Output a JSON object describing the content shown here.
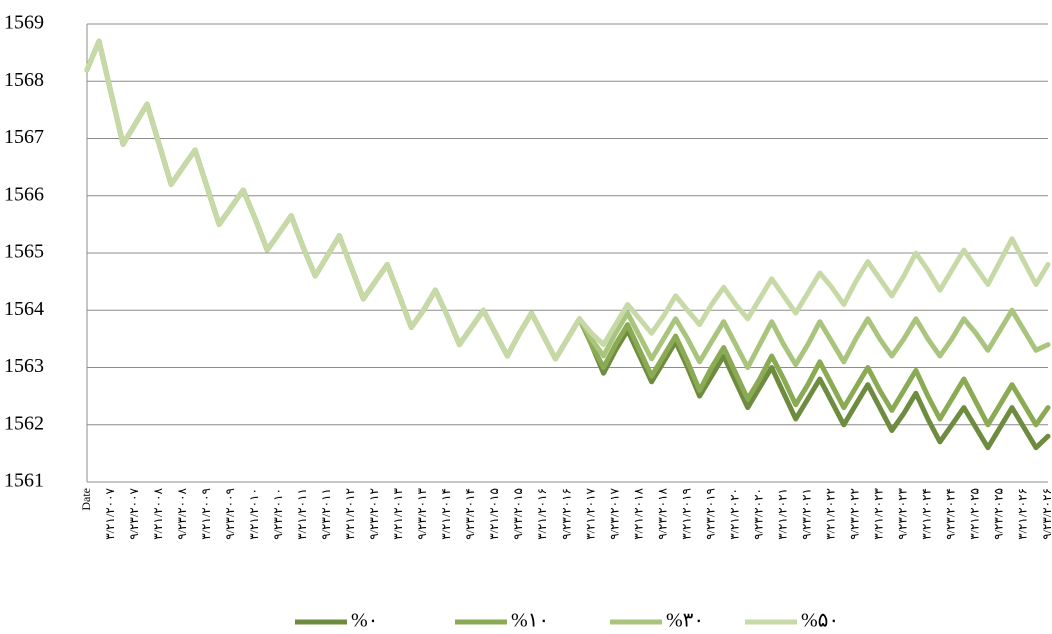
{
  "chart_data": {
    "type": "line",
    "categories": [
      "Date",
      null,
      "۳/۲۱/۲۰۰۷",
      null,
      "۹/۲۳/۲۰۰۷",
      null,
      "۳/۲۱/۲۰۰۸",
      null,
      "۹/۲۳/۲۰۰۸",
      null,
      "۳/۲۱/۲۰۰۹",
      null,
      "۹/۲۳/۲۰۰۹",
      null,
      "۳/۲۱/۲۰۱۰",
      null,
      "۹/۲۳/۲۰۱۰",
      null,
      "۳/۲۱/۲۰۱۱",
      null,
      "۹/۲۳/۲۰۱۱",
      null,
      "۳/۲۱/۲۰۱۲",
      null,
      "۹/۲۳/۲۰۱۲",
      null,
      "۳/۲۱/۲۰۱۳",
      null,
      "۹/۲۳/۲۰۱۳",
      null,
      "۳/۲۱/۲۰۱۴",
      null,
      "۹/۲۳/۲۰۱۴",
      null,
      "۳/۲۱/۲۰۱۵",
      null,
      "۹/۲۳/۲۰۱۵",
      null,
      "۳/۲۱/۲۰۱۶",
      null,
      "۹/۲۳/۲۰۱۶",
      null,
      "۳/۲۱/۲۰۱۷",
      null,
      "۹/۲۳/۲۰۱۷",
      null,
      "۳/۲۱/۲۰۱۸",
      null,
      "۹/۲۳/۲۰۱۸",
      null,
      "۳/۲۱/۲۰۱۹",
      null,
      "۹/۲۳/۲۰۱۹",
      null,
      "۳/۲۱/۲۰۲۰",
      null,
      "۹/۲۳/۲۰۲۰",
      null,
      "۳/۲۱/۲۰۲۱",
      null,
      "۹/۲۳/۲۰۲۱",
      null,
      "۳/۲۱/۲۰۲۲",
      null,
      "۹/۲۳/۲۰۲۲",
      null,
      "۳/۲۱/۲۰۲۳",
      null,
      "۹/۲۳/۲۰۲۳",
      null,
      "۳/۲۱/۲۰۲۴",
      null,
      "۹/۲۳/۲۰۲۴",
      null,
      "۳/۲۱/۲۰۲۵",
      null,
      "۹/۲۳/۲۰۲۵",
      null,
      "۳/۲۱/۲۰۲۶",
      null,
      "۹/۲۳/۲۰۲۶"
    ],
    "series": [
      {
        "name": "%۰",
        "color": "#6e8c3f",
        "values": [
          1568.2,
          1568.7,
          1567.8,
          1566.9,
          1567.25,
          1567.6,
          1566.9,
          1566.2,
          1566.5,
          1566.8,
          1566.15,
          1565.5,
          1565.8,
          1566.1,
          1565.6,
          1565.05,
          1565.35,
          1565.65,
          1565.1,
          1564.6,
          1564.95,
          1565.3,
          1564.75,
          1564.2,
          1564.5,
          1564.8,
          1564.25,
          1563.7,
          1564.0,
          1564.35,
          1563.9,
          1563.4,
          1563.7,
          1564.0,
          1563.6,
          1563.2,
          1563.6,
          1563.95,
          1563.55,
          1563.15,
          1563.5,
          1563.85,
          1563.4,
          1562.9,
          1563.3,
          1563.65,
          1563.2,
          1562.75,
          1563.1,
          1563.45,
          1563.0,
          1562.5,
          1562.85,
          1563.2,
          1562.75,
          1562.3,
          1562.65,
          1563.0,
          1562.55,
          1562.1,
          1562.45,
          1562.8,
          1562.4,
          1562.0,
          1562.35,
          1562.7,
          1562.3,
          1561.9,
          1562.2,
          1562.55,
          1562.1,
          1561.7,
          1562.0,
          1562.3,
          1561.95,
          1561.6,
          1561.95,
          1562.3,
          1561.95,
          1561.6,
          1561.8
        ]
      },
      {
        "name": "%۱۰",
        "color": "#8aab54",
        "values": [
          1568.2,
          1568.7,
          1567.8,
          1566.9,
          1567.25,
          1567.6,
          1566.9,
          1566.2,
          1566.5,
          1566.8,
          1566.15,
          1565.5,
          1565.8,
          1566.1,
          1565.6,
          1565.05,
          1565.35,
          1565.65,
          1565.1,
          1564.6,
          1564.95,
          1565.3,
          1564.75,
          1564.2,
          1564.5,
          1564.8,
          1564.25,
          1563.7,
          1564.0,
          1564.35,
          1563.9,
          1563.4,
          1563.7,
          1564.0,
          1563.6,
          1563.2,
          1563.6,
          1563.95,
          1563.55,
          1563.15,
          1563.5,
          1563.85,
          1563.4,
          1563.0,
          1563.4,
          1563.75,
          1563.3,
          1562.85,
          1563.2,
          1563.55,
          1563.1,
          1562.6,
          1563.0,
          1563.35,
          1562.9,
          1562.45,
          1562.8,
          1563.2,
          1562.8,
          1562.35,
          1562.7,
          1563.1,
          1562.7,
          1562.3,
          1562.65,
          1563.0,
          1562.6,
          1562.25,
          1562.6,
          1562.95,
          1562.5,
          1562.1,
          1562.45,
          1562.8,
          1562.4,
          1562.0,
          1562.35,
          1562.7,
          1562.35,
          1562.0,
          1562.3
        ]
      },
      {
        "name": "%۳۰",
        "color": "#a9c47c",
        "values": [
          1568.2,
          1568.7,
          1567.8,
          1566.9,
          1567.25,
          1567.6,
          1566.9,
          1566.2,
          1566.5,
          1566.8,
          1566.15,
          1565.5,
          1565.8,
          1566.1,
          1565.6,
          1565.05,
          1565.35,
          1565.65,
          1565.1,
          1564.6,
          1564.95,
          1565.3,
          1564.75,
          1564.2,
          1564.5,
          1564.8,
          1564.25,
          1563.7,
          1564.0,
          1564.35,
          1563.9,
          1563.4,
          1563.7,
          1564.0,
          1563.6,
          1563.2,
          1563.6,
          1563.95,
          1563.55,
          1563.15,
          1563.5,
          1563.85,
          1563.5,
          1563.2,
          1563.6,
          1563.95,
          1563.55,
          1563.15,
          1563.5,
          1563.85,
          1563.5,
          1563.1,
          1563.45,
          1563.8,
          1563.4,
          1563.0,
          1563.4,
          1563.8,
          1563.4,
          1563.05,
          1563.4,
          1563.8,
          1563.45,
          1563.1,
          1563.5,
          1563.85,
          1563.5,
          1563.2,
          1563.5,
          1563.85,
          1563.5,
          1563.2,
          1563.5,
          1563.85,
          1563.6,
          1563.3,
          1563.65,
          1564.0,
          1563.65,
          1563.3,
          1563.4
        ]
      },
      {
        "name": "%۵۰",
        "color": "#c6d9a6",
        "values": [
          1568.2,
          1568.7,
          1567.8,
          1566.9,
          1567.25,
          1567.6,
          1566.9,
          1566.2,
          1566.5,
          1566.8,
          1566.15,
          1565.5,
          1565.8,
          1566.1,
          1565.6,
          1565.05,
          1565.35,
          1565.65,
          1565.1,
          1564.6,
          1564.95,
          1565.3,
          1564.75,
          1564.2,
          1564.5,
          1564.8,
          1564.25,
          1563.7,
          1564.0,
          1564.35,
          1563.9,
          1563.4,
          1563.7,
          1564.0,
          1563.6,
          1563.2,
          1563.6,
          1563.95,
          1563.55,
          1563.15,
          1563.5,
          1563.85,
          1563.6,
          1563.4,
          1563.75,
          1564.1,
          1563.85,
          1563.6,
          1563.9,
          1564.25,
          1564.0,
          1563.75,
          1564.1,
          1564.4,
          1564.1,
          1563.85,
          1564.2,
          1564.55,
          1564.25,
          1563.95,
          1564.3,
          1564.65,
          1564.4,
          1564.1,
          1564.5,
          1564.85,
          1564.55,
          1564.25,
          1564.6,
          1565.0,
          1564.7,
          1564.35,
          1564.7,
          1565.05,
          1564.75,
          1564.45,
          1564.85,
          1565.25,
          1564.85,
          1564.45,
          1564.8
        ]
      }
    ],
    "ylim": [
      1561,
      1569
    ],
    "yticks": [
      1561,
      1562,
      1563,
      1564,
      1565,
      1566,
      1567,
      1568,
      1569
    ],
    "grid": true
  }
}
